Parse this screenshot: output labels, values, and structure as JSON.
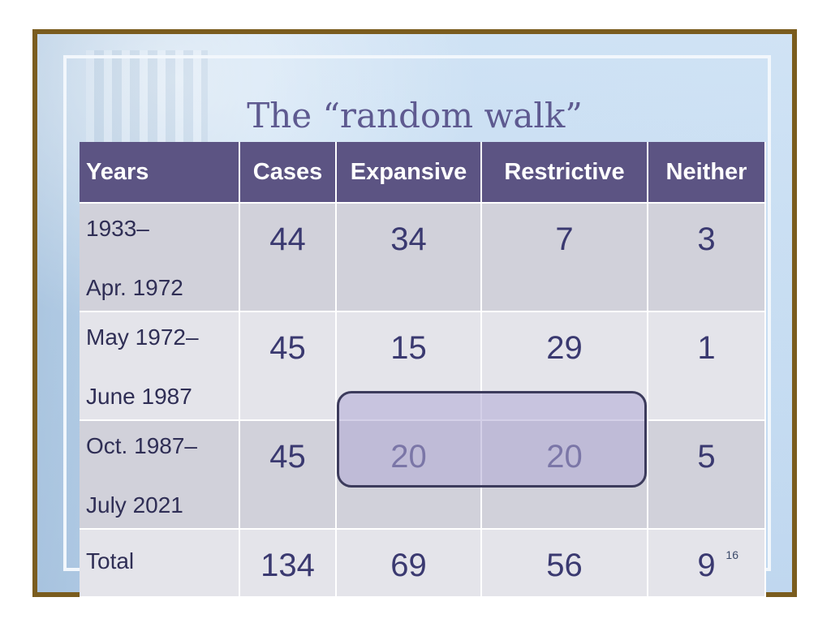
{
  "slide": {
    "title": "The “random walk”",
    "page_number": "16"
  },
  "table": {
    "headers": [
      "Years",
      "Cases",
      "Expansive",
      "Restrictive",
      "Neither"
    ],
    "rows": [
      {
        "years_line1": "1933–",
        "years_line2": "Apr. 1972",
        "cases": "44",
        "expansive": "34",
        "restrictive": "7",
        "neither": "3"
      },
      {
        "years_line1": "May 1972–",
        "years_line2": "June 1987",
        "cases": "45",
        "expansive": "15",
        "restrictive": "29",
        "neither": "1"
      },
      {
        "years_line1": "Oct. 1987–",
        "years_line2": "July 2021",
        "cases": "45",
        "expansive": "20",
        "restrictive": "20",
        "neither": "5"
      },
      {
        "years_line1": "Total",
        "years_line2": "",
        "cases": "134",
        "expansive": "69",
        "restrictive": "56",
        "neither": "9"
      }
    ],
    "highlighted_row": 2,
    "highlighted_columns": [
      "Expansive",
      "Restrictive"
    ]
  },
  "colors": {
    "header_bg": "#5c5483",
    "frame": "#7a5c1e",
    "title": "#5e5a90",
    "highlight": "#b0aad6"
  }
}
